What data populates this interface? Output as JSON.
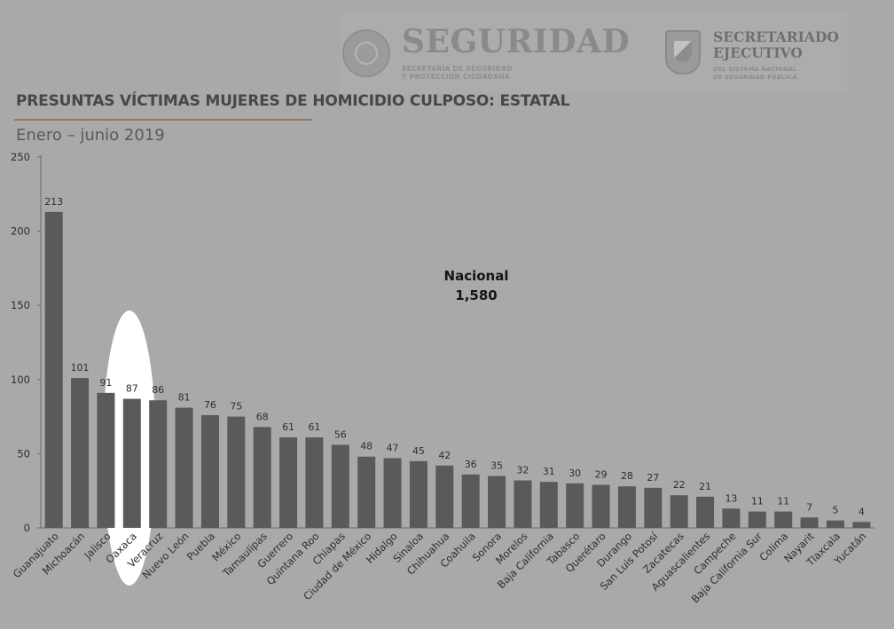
{
  "header": {
    "logo1_title": "SEGURIDAD",
    "logo1_line1": "SECRETARÍA DE SEGURIDAD",
    "logo1_line2": "Y PROTECCIÓN CIUDADANA",
    "logo2_line1": "SECRETARIADO",
    "logo2_line2": "EJECUTIVO",
    "logo2_sub1": "DEL SISTEMA NACIONAL",
    "logo2_sub2": "DE SEGURIDAD PÚBLICA"
  },
  "icons": [
    "mexico-seal-icon",
    "secretariado-shield-icon"
  ],
  "colors": {
    "background": "#a9a9a9",
    "bar": "#5a5a5a",
    "highlight": "#ffffff",
    "title": "#474747"
  },
  "chart_data": {
    "type": "bar",
    "title": "PRESUNTAS VÍCTIMAS MUJERES DE HOMICIDIO CULPOSO: ESTATAL",
    "subtitle": "Enero – junio 2019",
    "xlabel": "",
    "ylabel": "",
    "ylim": [
      0,
      250
    ],
    "yticks": [
      0,
      50,
      100,
      150,
      200,
      250
    ],
    "grid": false,
    "legend": "none",
    "annotation": {
      "line1": "Nacional",
      "line2": "1,580"
    },
    "highlighted_categories": [
      "Oaxaca"
    ],
    "categories": [
      "Guanajuato",
      "Michoacán",
      "Jalisco",
      "Oaxaca",
      "Veracruz",
      "Nuevo León",
      "Puebla",
      "México",
      "Tamaulipas",
      "Guerrero",
      "Quintana Roo",
      "Chiapas",
      "Ciudad de México",
      "Hidalgo",
      "Sinaloa",
      "Chihuahua",
      "Coahuila",
      "Sonora",
      "Morelos",
      "Baja California",
      "Tabasco",
      "Querétaro",
      "Durango",
      "San Luis Potosí",
      "Zacatecas",
      "Aguascalientes",
      "Campeche",
      "Baja California Sur",
      "Colima",
      "Nayarit",
      "Tlaxcala",
      "Yucatán"
    ],
    "values": [
      213,
      101,
      91,
      87,
      86,
      81,
      76,
      75,
      68,
      61,
      61,
      56,
      48,
      47,
      45,
      42,
      36,
      35,
      32,
      31,
      30,
      29,
      28,
      27,
      22,
      21,
      13,
      11,
      11,
      7,
      5,
      4
    ]
  }
}
